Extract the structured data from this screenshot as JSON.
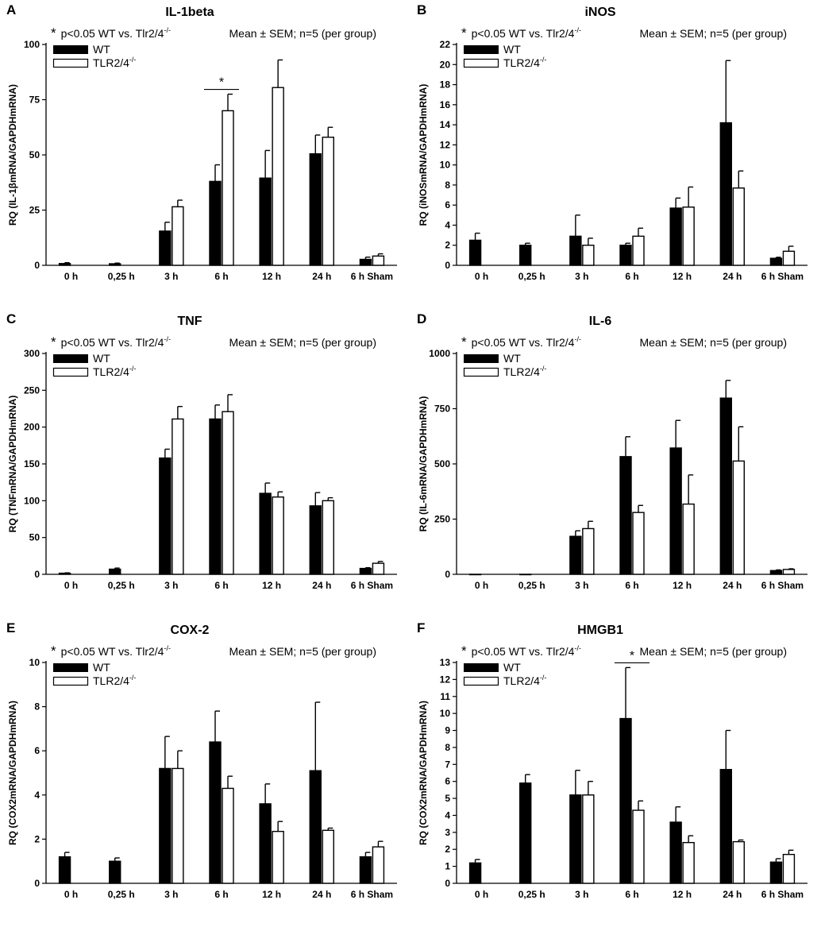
{
  "figure": {
    "categories": [
      "0 h",
      "0,25 h",
      "3 h",
      "6 h",
      "12 h",
      "24 h",
      "6 h Sham"
    ],
    "sig_note": "p<0.05 WT vs. Tlr2/4",
    "sig_note_sup": "-/-",
    "asterisk": "*",
    "stats_note": "Mean ± SEM; n=5 (per group)",
    "legend": {
      "wt": "WT",
      "ko": "TLR2/4",
      "ko_sup": "-/-"
    }
  },
  "chart_data": [
    {
      "type": "bar",
      "panel": "A",
      "title": "IL-1beta",
      "ylabel": "RQ (IL-1βmRNA/GAPDHmRNA)",
      "ylim": [
        0,
        100
      ],
      "yticks": [
        0,
        25,
        50,
        75,
        100
      ],
      "categories": [
        "0 h",
        "0,25 h",
        "3 h",
        "6 h",
        "12 h",
        "24 h",
        "6 h Sham"
      ],
      "series": [
        {
          "name": "WT",
          "values": [
            0.8,
            0.7,
            15.5,
            38,
            39.5,
            50.5,
            2.7
          ],
          "errors": [
            0.4,
            0.3,
            4,
            7.5,
            12.5,
            8.5,
            1
          ]
        },
        {
          "name": "TLR2/4-/-",
          "values": [
            null,
            null,
            26.5,
            70,
            80.5,
            58,
            4.2
          ],
          "errors": [
            null,
            null,
            3,
            7.5,
            12.5,
            4.5,
            1
          ]
        }
      ],
      "significance": [
        {
          "category": "6 h",
          "label": "*"
        }
      ]
    },
    {
      "type": "bar",
      "panel": "B",
      "title": "iNOS",
      "ylabel": "RQ (iNOSmRNA/GAPDHmRNA)",
      "ylim": [
        0,
        22
      ],
      "yticks": [
        0,
        2,
        4,
        6,
        8,
        10,
        12,
        14,
        16,
        18,
        20,
        22
      ],
      "categories": [
        "0 h",
        "0,25 h",
        "3 h",
        "6 h",
        "12 h",
        "24 h",
        "6 h Sham"
      ],
      "series": [
        {
          "name": "WT",
          "values": [
            2.5,
            2.0,
            2.9,
            2.0,
            5.7,
            14.2,
            0.7
          ],
          "errors": [
            0.7,
            0.2,
            2.1,
            0.2,
            1.0,
            6.2,
            0.1
          ]
        },
        {
          "name": "TLR2/4-/-",
          "values": [
            null,
            null,
            2.0,
            2.9,
            5.8,
            7.7,
            1.4
          ],
          "errors": [
            null,
            null,
            0.7,
            0.8,
            2.0,
            1.7,
            0.5
          ]
        }
      ],
      "significance": []
    },
    {
      "type": "bar",
      "panel": "C",
      "title": "TNF",
      "ylabel": "RQ (TNFmRNA/GAPDHmRNA)",
      "ylim": [
        0,
        300
      ],
      "yticks": [
        0,
        50,
        100,
        150,
        200,
        250,
        300
      ],
      "categories": [
        "0 h",
        "0,25 h",
        "3 h",
        "6 h",
        "12 h",
        "24 h",
        "6 h Sham"
      ],
      "series": [
        {
          "name": "WT",
          "values": [
            1.5,
            7,
            158,
            211,
            110,
            93,
            8
          ],
          "errors": [
            0.5,
            1.5,
            12,
            19,
            14,
            18,
            1
          ]
        },
        {
          "name": "TLR2/4-/-",
          "values": [
            null,
            null,
            211,
            221,
            105,
            100,
            15
          ],
          "errors": [
            null,
            null,
            17,
            23,
            7,
            4,
            2.5
          ]
        }
      ],
      "significance": []
    },
    {
      "type": "bar",
      "panel": "D",
      "title": "IL-6",
      "ylabel": "RQ (IL-6mRNA/GAPDHmRNA)",
      "ylim": [
        0,
        1000
      ],
      "yticks": [
        0,
        250,
        500,
        750,
        1000
      ],
      "categories": [
        "0 h",
        "0,25 h",
        "3 h",
        "6 h",
        "12 h",
        "24 h",
        "6 h Sham"
      ],
      "series": [
        {
          "name": "WT",
          "values": [
            0,
            0,
            172,
            533,
            572,
            798,
            17
          ],
          "errors": [
            0,
            0,
            25,
            90,
            125,
            80,
            3
          ]
        },
        {
          "name": "TLR2/4-/-",
          "values": [
            null,
            null,
            207,
            280,
            318,
            513,
            22
          ],
          "errors": [
            null,
            null,
            33,
            32,
            132,
            155,
            3
          ]
        }
      ],
      "significance": []
    },
    {
      "type": "bar",
      "panel": "E",
      "title": "COX-2",
      "ylabel": "RQ (COX2mRNA/GAPDHmRNA)",
      "ylim": [
        0,
        10
      ],
      "yticks": [
        0,
        2,
        4,
        6,
        8,
        10
      ],
      "categories": [
        "0 h",
        "0,25 h",
        "3 h",
        "6 h",
        "12 h",
        "24 h",
        "6 h Sham"
      ],
      "series": [
        {
          "name": "WT",
          "values": [
            1.2,
            1.0,
            5.2,
            6.4,
            3.6,
            5.1,
            1.2
          ],
          "errors": [
            0.2,
            0.15,
            1.45,
            1.4,
            0.9,
            3.1,
            0.2
          ]
        },
        {
          "name": "TLR2/4-/-",
          "values": [
            null,
            null,
            5.2,
            4.3,
            2.35,
            2.4,
            1.65
          ],
          "errors": [
            null,
            null,
            0.8,
            0.55,
            0.45,
            0.1,
            0.25
          ]
        }
      ],
      "significance": []
    },
    {
      "type": "bar",
      "panel": "F",
      "title": "HMGB1",
      "ylabel": "RQ (COX2mRNA/GAPDHmRNA)",
      "ylim": [
        0,
        13
      ],
      "yticks": [
        0,
        1,
        2,
        3,
        4,
        5,
        6,
        7,
        8,
        9,
        10,
        11,
        12,
        13
      ],
      "categories": [
        "0 h",
        "0,25 h",
        "3 h",
        "6 h",
        "12 h",
        "24 h",
        "6 h Sham"
      ],
      "series": [
        {
          "name": "WT",
          "values": [
            1.2,
            5.9,
            5.2,
            9.7,
            3.6,
            6.7,
            1.25
          ],
          "errors": [
            0.2,
            0.5,
            1.45,
            3.0,
            0.9,
            2.3,
            0.2
          ]
        },
        {
          "name": "TLR2/4-/-",
          "values": [
            null,
            null,
            5.2,
            4.3,
            2.4,
            2.45,
            1.7
          ],
          "errors": [
            null,
            null,
            0.8,
            0.55,
            0.4,
            0.1,
            0.25
          ]
        }
      ],
      "significance": [
        {
          "category": "6 h",
          "label": "*"
        }
      ]
    }
  ]
}
